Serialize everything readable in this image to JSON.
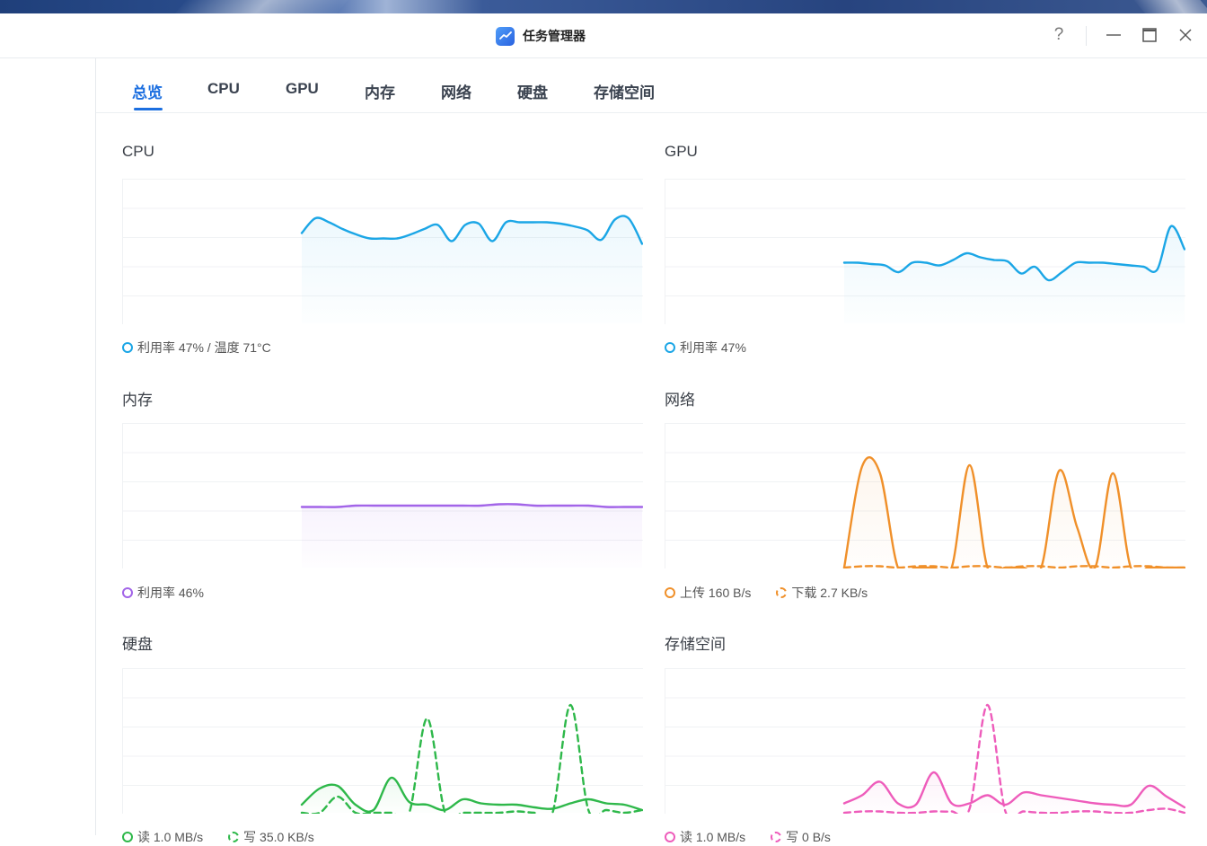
{
  "window": {
    "title": "任务管理器",
    "help_label": "?"
  },
  "tabs": [
    {
      "label": "总览",
      "active": true
    },
    {
      "label": "CPU",
      "active": false
    },
    {
      "label": "GPU",
      "active": false
    },
    {
      "label": "内存",
      "active": false
    },
    {
      "label": "网络",
      "active": false
    },
    {
      "label": "硬盘",
      "active": false
    },
    {
      "label": "存储空间",
      "active": false
    }
  ],
  "panels": {
    "cpu": {
      "title": "CPU",
      "color": "#1ba6e6",
      "legend": [
        {
          "label": "利用率 47% / 温度 71°C",
          "style": "solid"
        }
      ]
    },
    "gpu": {
      "title": "GPU",
      "color": "#1ba6e6",
      "legend": [
        {
          "label": "利用率 47%",
          "style": "solid"
        }
      ]
    },
    "memory": {
      "title": "内存",
      "color": "#a264e8",
      "legend": [
        {
          "label": "利用率 46%",
          "style": "solid"
        }
      ]
    },
    "network": {
      "title": "网络",
      "color": "#f0902a",
      "legend": [
        {
          "label": "上传 160 B/s",
          "style": "solid"
        },
        {
          "label": "下载 2.7 KB/s",
          "style": "dashed"
        }
      ]
    },
    "disk": {
      "title": "硬盘",
      "color": "#2eb84a",
      "legend": [
        {
          "label": "读 1.0 MB/s",
          "style": "solid"
        },
        {
          "label": "写 35.0 KB/s",
          "style": "dashed"
        }
      ]
    },
    "storage": {
      "title": "存储空间",
      "color": "#ee5cbb",
      "legend": [
        {
          "label": "读 1.0 MB/s",
          "style": "solid"
        },
        {
          "label": "写 0 B/s",
          "style": "dashed"
        }
      ]
    }
  },
  "chart_data": [
    {
      "type": "area",
      "series": [
        {
          "values": [
            0.67,
            0.78,
            0.75,
            0.7,
            0.66,
            0.63,
            0.63,
            0.63,
            0.66,
            0.7,
            0.73,
            0.61,
            0.73,
            0.74,
            0.61,
            0.75,
            0.75,
            0.75,
            0.75,
            0.74,
            0.72,
            0.69,
            0.62,
            0.77,
            0.78,
            0.59
          ]
        }
      ]
    },
    {
      "type": "area",
      "series": [
        {
          "values": [
            0.45,
            0.45,
            0.44,
            0.43,
            0.38,
            0.45,
            0.45,
            0.43,
            0.47,
            0.52,
            0.49,
            0.47,
            0.46,
            0.37,
            0.42,
            0.32,
            0.38,
            0.45,
            0.45,
            0.45,
            0.44,
            0.43,
            0.42,
            0.4,
            0.72,
            0.55
          ]
        }
      ]
    },
    {
      "type": "area",
      "series": [
        {
          "values": [
            0.45,
            0.45,
            0.45,
            0.46,
            0.46,
            0.46,
            0.46,
            0.46,
            0.46,
            0.46,
            0.46,
            0.47,
            0.47,
            0.46,
            0.46,
            0.46,
            0.46,
            0.45,
            0.45,
            0.45
          ]
        }
      ]
    },
    {
      "type": "area",
      "series": [
        {
          "values": [
            0.0,
            0.75,
            0.7,
            0.0,
            0.0,
            0.0,
            0.0,
            0.76,
            0.0,
            0.0,
            0.0,
            0.0,
            0.72,
            0.3,
            0.0,
            0.7,
            0.0,
            0.0,
            0.0,
            0.0
          ]
        },
        {
          "values": [
            0.0,
            0.01,
            0.01,
            0.0,
            0.01,
            0.01,
            0.0,
            0.01,
            0.01,
            0.0,
            0.01,
            0.01,
            0.0,
            0.01,
            0.01,
            0.0,
            0.01,
            0.01,
            0.0,
            0.0
          ]
        }
      ]
    },
    {
      "type": "area",
      "series": [
        {
          "values": [
            0.06,
            0.18,
            0.2,
            0.06,
            0.02,
            0.26,
            0.08,
            0.06,
            0.02,
            0.1,
            0.07,
            0.06,
            0.06,
            0.04,
            0.03,
            0.07,
            0.1,
            0.07,
            0.06,
            0.02
          ]
        },
        {
          "values": [
            0.0,
            0.0,
            0.12,
            0.0,
            0.0,
            0.0,
            0.0,
            0.7,
            0.0,
            0.0,
            0.0,
            0.0,
            0.01,
            0.0,
            0.0,
            0.8,
            0.02,
            0.02,
            0.0,
            0.02
          ]
        }
      ]
    },
    {
      "type": "area",
      "series": [
        {
          "values": [
            0.07,
            0.13,
            0.23,
            0.07,
            0.06,
            0.3,
            0.07,
            0.07,
            0.13,
            0.06,
            0.15,
            0.13,
            0.11,
            0.09,
            0.07,
            0.06,
            0.06,
            0.2,
            0.12,
            0.04
          ]
        },
        {
          "values": [
            0.0,
            0.01,
            0.01,
            0.0,
            0.0,
            0.01,
            0.01,
            0.03,
            0.8,
            0.01,
            0.01,
            0.0,
            0.0,
            0.01,
            0.01,
            0.0,
            0.0,
            0.02,
            0.03,
            0.0
          ]
        }
      ]
    }
  ]
}
